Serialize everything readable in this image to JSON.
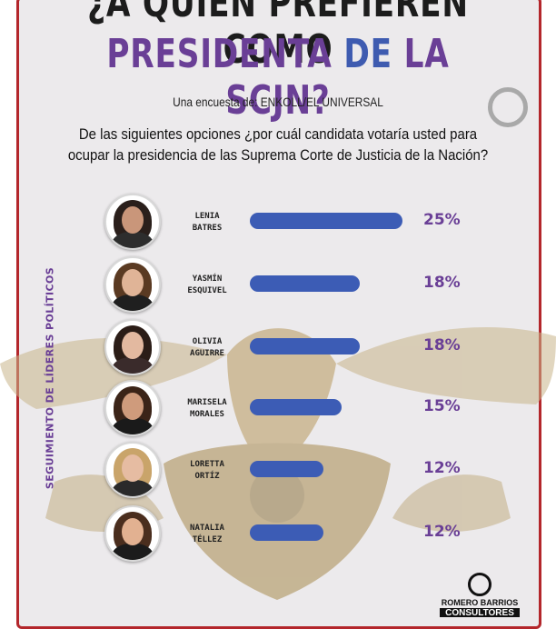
{
  "title_line1": "¿A QUIÉN PREFIEREN COMO",
  "title_line2_part1": "PRESIDENTA ",
  "title_line2_part2": "DE",
  "title_line2_part3": " LA SCJN?",
  "subtitle": "Una encuesta de: ENKOLL/EL UNIVERSAL",
  "question_line1": "De las siguientes opciones ¿por cuál candidata votaría usted para",
  "question_line2": "ocupar la presidencia de las Suprema Corte de Justicia de la Nación?",
  "side_label": "SEGUIMIENTO DE LÍDERES POLÍTICOS",
  "logo": {
    "line1": "ROMERO BARRIOS",
    "line2": "CONSULTORES"
  },
  "colors": {
    "accent": "#6a3f96",
    "bar": "#3c5cb5",
    "frame": "#b3262b"
  },
  "chart_data": {
    "type": "bar",
    "orientation": "horizontal",
    "categories": [
      "LENIA BATRES",
      "YASMÍN ESQUIVEL",
      "OLIVIA AGUIRRE",
      "MARISELA MORALES",
      "LORETTA ORTÍZ",
      "NATALIA TÉLLEZ"
    ],
    "name_lines": [
      [
        "LENIA",
        "BATRES"
      ],
      [
        "YASMÍN",
        "ESQUIVEL"
      ],
      [
        "OLIVIA",
        "AGUIRRE"
      ],
      [
        "MARISELA",
        "MORALES"
      ],
      [
        "LORETTA",
        "ORTÍZ"
      ],
      [
        "NATALIA",
        "TÉLLEZ"
      ]
    ],
    "values": [
      25,
      18,
      18,
      15,
      12,
      12
    ],
    "value_labels": [
      "25%",
      "18%",
      "18%",
      "15%",
      "12%",
      "12%"
    ],
    "unit": "%",
    "icons": [
      "candidate-photo",
      "candidate-photo",
      "candidate-photo",
      "candidate-photo",
      "candidate-photo",
      "candidate-photo"
    ]
  }
}
